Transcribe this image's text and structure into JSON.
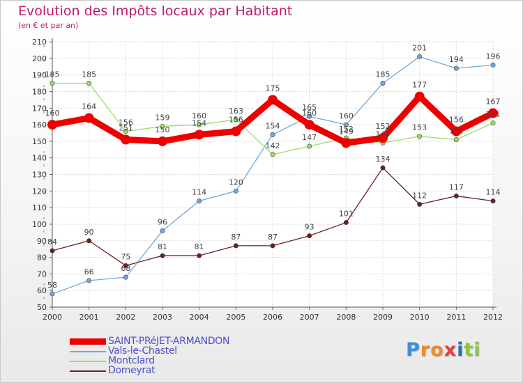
{
  "chart_data": {
    "type": "line",
    "title": "Evolution des Impôts locaux par Habitant",
    "subtitle": "(en € et par an)",
    "x": [
      "2000",
      "2001",
      "2002",
      "2003",
      "2004",
      "2005",
      "2006",
      "2007",
      "2008",
      "2009",
      "2010",
      "2011",
      "2012"
    ],
    "ylim": [
      50,
      210
    ],
    "yticks": [
      50,
      60,
      70,
      80,
      90,
      100,
      110,
      120,
      130,
      140,
      150,
      160,
      170,
      180,
      190,
      200,
      210
    ],
    "grid": true,
    "legend_position": "bottom-left",
    "series": [
      {
        "name": "SAINT-PRéJET-ARMANDON",
        "color": "#ee0000",
        "emphasis": true,
        "values": [
          160,
          164,
          151,
          150,
          154,
          156,
          175,
          160,
          149,
          152,
          177,
          156,
          167
        ]
      },
      {
        "name": "Vals-le-Chastel",
        "color": "#6fa8dc",
        "values": [
          58,
          66,
          68,
          96,
          114,
          120,
          154,
          165,
          160,
          185,
          201,
          194,
          196
        ]
      },
      {
        "name": "Montclard",
        "color": "#99dd66",
        "values": [
          185,
          185,
          156,
          159,
          160,
          163,
          142,
          147,
          152,
          149,
          153,
          151,
          161
        ]
      },
      {
        "name": "Domeyrat",
        "color": "#6b1f1f",
        "values": [
          84,
          90,
          75,
          81,
          81,
          87,
          87,
          93,
          101,
          134,
          112,
          117,
          114
        ]
      }
    ]
  },
  "logo": {
    "letters": [
      "P",
      "r",
      "o",
      "x",
      "i",
      "t",
      "i"
    ],
    "colors": [
      "#3d8fd6",
      "#f08a1e",
      "#f08a1e",
      "#e83c3c",
      "#2a6fb8",
      "#8cc63e",
      "#8cc63e"
    ]
  }
}
